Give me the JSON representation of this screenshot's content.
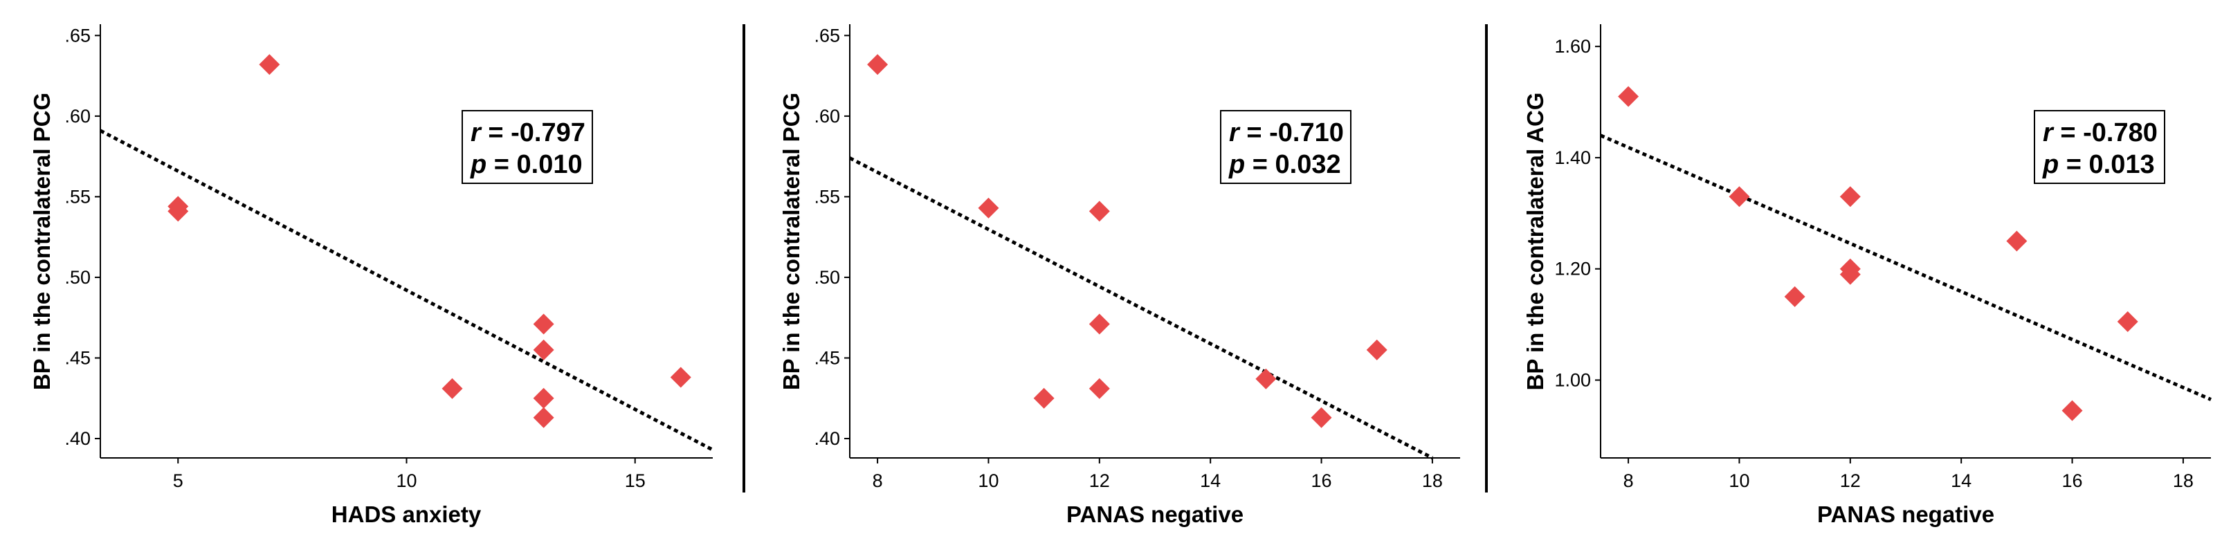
{
  "colors": {
    "marker": "#e8494a",
    "axis": "#000000",
    "fit": "#000000"
  },
  "chart_data": [
    {
      "type": "scatter",
      "title": "",
      "xlabel": "HADS anxiety",
      "ylabel": "BP in the contralateral PCG",
      "xlim": [
        3.3,
        16.7
      ],
      "ylim": [
        0.388,
        0.657
      ],
      "xticks": [
        5,
        10,
        15
      ],
      "xtick_labels": [
        "5",
        "10",
        "15"
      ],
      "yticks": [
        0.4,
        0.45,
        0.5,
        0.55,
        0.6,
        0.65
      ],
      "ytick_labels": [
        ".40",
        ".45",
        ".50",
        ".55",
        ".60",
        ".65"
      ],
      "points": [
        {
          "x": 5,
          "y": 0.544
        },
        {
          "x": 5,
          "y": 0.541
        },
        {
          "x": 7,
          "y": 0.632
        },
        {
          "x": 11,
          "y": 0.431
        },
        {
          "x": 13,
          "y": 0.471
        },
        {
          "x": 13,
          "y": 0.455
        },
        {
          "x": 13,
          "y": 0.425
        },
        {
          "x": 13,
          "y": 0.413
        },
        {
          "x": 16,
          "y": 0.438
        }
      ],
      "fit_line": [
        {
          "x": 3.3,
          "y": 0.591
        },
        {
          "x": 16.7,
          "y": 0.393
        }
      ],
      "stats": {
        "r_label": "r",
        "r_value": "= -0.797",
        "p_label": "p",
        "p_value": "= 0.010"
      }
    },
    {
      "type": "scatter",
      "title": "",
      "xlabel": "PANAS negative",
      "ylabel": "BP in the contralateral PCG",
      "xlim": [
        7.5,
        18.5
      ],
      "ylim": [
        0.388,
        0.657
      ],
      "xticks": [
        8,
        10,
        12,
        14,
        16,
        18
      ],
      "xtick_labels": [
        "8",
        "10",
        "12",
        "14",
        "16",
        "18"
      ],
      "yticks": [
        0.4,
        0.45,
        0.5,
        0.55,
        0.6,
        0.65
      ],
      "ytick_labels": [
        ".40",
        ".45",
        ".50",
        ".55",
        ".60",
        ".65"
      ],
      "points": [
        {
          "x": 8,
          "y": 0.632
        },
        {
          "x": 10,
          "y": 0.543
        },
        {
          "x": 11,
          "y": 0.425
        },
        {
          "x": 12,
          "y": 0.541
        },
        {
          "x": 12,
          "y": 0.471
        },
        {
          "x": 12,
          "y": 0.431
        },
        {
          "x": 15,
          "y": 0.437
        },
        {
          "x": 16,
          "y": 0.413
        },
        {
          "x": 17,
          "y": 0.455
        }
      ],
      "fit_line": [
        {
          "x": 7.5,
          "y": 0.574
        },
        {
          "x": 18.0,
          "y": 0.388
        }
      ],
      "stats": {
        "r_label": "r",
        "r_value": "= -0.710",
        "p_label": "p",
        "p_value": "= 0.032"
      }
    },
    {
      "type": "scatter",
      "title": "",
      "xlabel": "PANAS negative",
      "ylabel": "BP in the contralateral ACG",
      "xlim": [
        7.5,
        18.5
      ],
      "ylim": [
        0.86,
        1.64
      ],
      "xticks": [
        8,
        10,
        12,
        14,
        16,
        18
      ],
      "xtick_labels": [
        "8",
        "10",
        "12",
        "14",
        "16",
        "18"
      ],
      "yticks": [
        1.0,
        1.2,
        1.4,
        1.6
      ],
      "ytick_labels": [
        "1.00",
        "1.20",
        "1.40",
        "1.60"
      ],
      "points": [
        {
          "x": 8,
          "y": 1.51
        },
        {
          "x": 10,
          "y": 1.33
        },
        {
          "x": 11,
          "y": 1.15
        },
        {
          "x": 12,
          "y": 1.33
        },
        {
          "x": 12,
          "y": 1.2
        },
        {
          "x": 12,
          "y": 1.19
        },
        {
          "x": 15,
          "y": 1.25
        },
        {
          "x": 16,
          "y": 0.945
        },
        {
          "x": 17,
          "y": 1.105
        }
      ],
      "fit_line": [
        {
          "x": 7.5,
          "y": 1.44
        },
        {
          "x": 18.5,
          "y": 0.965
        }
      ],
      "stats": {
        "r_label": "r",
        "r_value": "= -0.780",
        "p_label": "p",
        "p_value": "= 0.013"
      }
    }
  ]
}
